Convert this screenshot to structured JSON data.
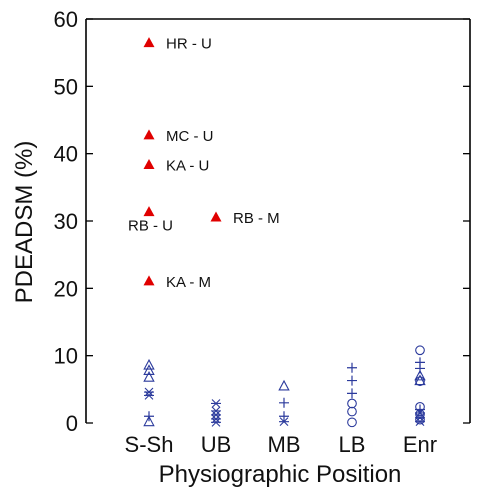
{
  "chart_data": {
    "type": "scatter",
    "title": "",
    "xlabel": "Physiographic Position",
    "ylabel": "PDEADSM (%)",
    "ylim": [
      0,
      60
    ],
    "yticks": [
      0,
      10,
      20,
      30,
      40,
      50,
      60
    ],
    "categories": [
      "S-Sh",
      "UB",
      "MB",
      "LB",
      "Enr"
    ],
    "grid": false,
    "legend": "none",
    "colors": {
      "highlight": "#e00000",
      "data": "#2b3a9c",
      "axis": "#000000"
    },
    "series": [
      {
        "marker": "filled-triangle",
        "color": "#e00000",
        "points": [
          {
            "category": "S-Sh",
            "y": 56.5,
            "label": "HR - U"
          },
          {
            "category": "S-Sh",
            "y": 42.8,
            "label": "MC - U"
          },
          {
            "category": "S-Sh",
            "y": 38.4,
            "label": "KA - U"
          },
          {
            "category": "S-Sh",
            "y": 31.4,
            "label": "RB - U"
          },
          {
            "category": "S-Sh",
            "y": 21.1,
            "label": "KA - M"
          },
          {
            "category": "UB",
            "y": 30.6,
            "label": "RB - M"
          }
        ]
      },
      {
        "marker": "open-triangle",
        "color": "#2b3a9c",
        "points": [
          {
            "category": "S-Sh",
            "y": 8.6
          },
          {
            "category": "S-Sh",
            "y": 7.8
          },
          {
            "category": "S-Sh",
            "y": 6.8
          },
          {
            "category": "S-Sh",
            "y": 0.2
          },
          {
            "category": "MB",
            "y": 5.5
          },
          {
            "category": "Enr",
            "y": 7.0
          },
          {
            "category": "Enr",
            "y": 6.3
          }
        ]
      },
      {
        "marker": "asterisk",
        "color": "#2b3a9c",
        "points": [
          {
            "category": "S-Sh",
            "y": 4.6
          },
          {
            "category": "S-Sh",
            "y": 4.1
          },
          {
            "category": "UB",
            "y": 2.9
          },
          {
            "category": "UB",
            "y": 1.8
          },
          {
            "category": "UB",
            "y": 1.2
          },
          {
            "category": "UB",
            "y": 0.6
          },
          {
            "category": "UB",
            "y": 0.1
          },
          {
            "category": "MB",
            "y": 0.2
          },
          {
            "category": "Enr",
            "y": 1.5
          },
          {
            "category": "Enr",
            "y": 0.8
          },
          {
            "category": "Enr",
            "y": 0.2
          }
        ]
      },
      {
        "marker": "plus",
        "color": "#2b3a9c",
        "points": [
          {
            "category": "S-Sh",
            "y": 1.0
          },
          {
            "category": "MB",
            "y": 3.0
          },
          {
            "category": "MB",
            "y": 1.0
          },
          {
            "category": "LB",
            "y": 8.2
          },
          {
            "category": "LB",
            "y": 6.3
          },
          {
            "category": "LB",
            "y": 4.4
          },
          {
            "category": "Enr",
            "y": 9.0
          },
          {
            "category": "Enr",
            "y": 8.1
          },
          {
            "category": "Enr",
            "y": 2.0
          }
        ]
      },
      {
        "marker": "circle",
        "color": "#2b3a9c",
        "points": [
          {
            "category": "LB",
            "y": 2.9
          },
          {
            "category": "LB",
            "y": 1.7
          },
          {
            "category": "LB",
            "y": 0.1
          },
          {
            "category": "Enr",
            "y": 10.8
          },
          {
            "category": "Enr",
            "y": 6.2
          },
          {
            "category": "Enr",
            "y": 2.4
          },
          {
            "category": "Enr",
            "y": 1.3
          },
          {
            "category": "Enr",
            "y": 0.5
          }
        ]
      }
    ]
  }
}
